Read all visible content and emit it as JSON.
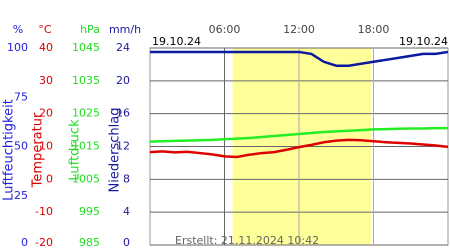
{
  "chart_data": {
    "type": "line",
    "date_start": "19.10.24",
    "date_end": "19.10.24",
    "created": "Erstellt: 21.11.2024 10:42",
    "xlim": [
      0,
      24
    ],
    "xticks": [
      {
        "value": 6,
        "label": "06:00"
      },
      {
        "value": 12,
        "label": "12:00"
      },
      {
        "value": 18,
        "label": "18:00"
      }
    ],
    "daylight": [
      6.65,
      17.8
    ],
    "axes": [
      {
        "unit": "%",
        "name": "Luftfeuchtigkeit",
        "color": "#2222dd",
        "ylim": [
          0,
          100
        ],
        "yticks": [
          0,
          25,
          50,
          75,
          100
        ]
      },
      {
        "unit": "°C",
        "name": "Temperatur",
        "color": "#dd0000",
        "ylim": [
          -20,
          40
        ],
        "yticks": [
          -20,
          -10,
          0,
          10,
          20,
          30,
          40
        ]
      },
      {
        "unit": "hPa",
        "name": "Luftdruck",
        "color": "#22dd22",
        "ylim": [
          985,
          1045
        ],
        "yticks": [
          985,
          995,
          1005,
          1015,
          1025,
          1035,
          1045
        ]
      },
      {
        "unit": "mm/h",
        "name": "Niederschlag",
        "color": "#1a1a9e",
        "ylim": [
          0,
          24
        ],
        "yticks": [
          0,
          4,
          8,
          12,
          16,
          20,
          24
        ]
      }
    ],
    "x": [
      0,
      1,
      2,
      3,
      4,
      5,
      6,
      7,
      8,
      9,
      10,
      11,
      12,
      13,
      14,
      15,
      16,
      17,
      18,
      19,
      20,
      21,
      22,
      23,
      24
    ],
    "series": [
      {
        "axis": 0,
        "color": "#0b1a9e",
        "values": [
          98,
          98,
          98,
          98,
          98,
          98,
          98,
          98,
          98,
          98,
          98,
          98,
          98,
          97,
          93,
          91,
          91,
          92,
          93,
          94,
          95,
          96,
          97,
          97,
          98
        ]
      },
      {
        "axis": 1,
        "color": "#dd0000",
        "values": [
          8.3,
          8.5,
          8.2,
          8.4,
          8.0,
          7.6,
          7.0,
          6.8,
          7.5,
          8.0,
          8.3,
          9.0,
          9.8,
          10.5,
          11.3,
          11.8,
          12.0,
          11.9,
          11.6,
          11.3,
          11.1,
          10.9,
          10.6,
          10.3,
          9.9
        ]
      },
      {
        "axis": 2,
        "color": "#22ee22",
        "values": [
          1016.5,
          1016.6,
          1016.7,
          1016.8,
          1016.9,
          1017.0,
          1017.2,
          1017.4,
          1017.6,
          1017.9,
          1018.2,
          1018.5,
          1018.8,
          1019.1,
          1019.4,
          1019.6,
          1019.8,
          1020.0,
          1020.2,
          1020.3,
          1020.4,
          1020.5,
          1020.5,
          1020.6,
          1020.6
        ]
      }
    ]
  }
}
